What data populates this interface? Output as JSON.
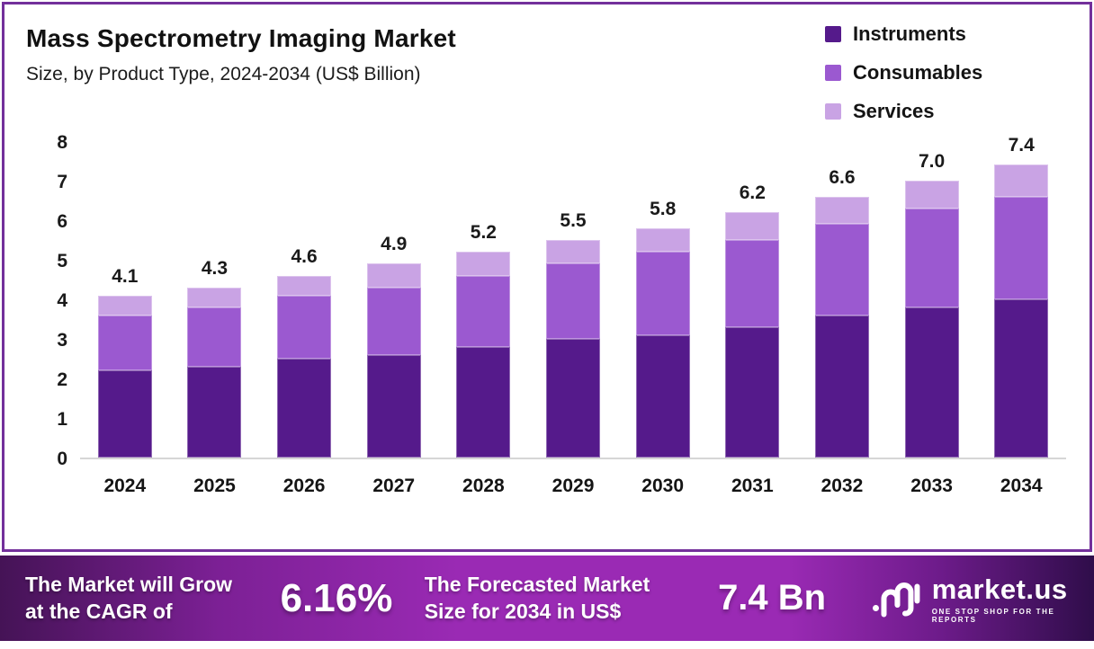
{
  "header": {
    "title": "Mass Spectrometry Imaging Market",
    "subtitle": "Size, by Product Type, 2024-2034 (US$ Billion)"
  },
  "legend": [
    {
      "label": "Instruments",
      "color": "#551a8b"
    },
    {
      "label": "Consumables",
      "color": "#9b59d0"
    },
    {
      "label": "Services",
      "color": "#c9a3e4"
    }
  ],
  "chart_data": {
    "type": "bar",
    "stacked": true,
    "title": "Mass Spectrometry Imaging Market",
    "subtitle": "Size, by Product Type, 2024-2034 (US$ Billion)",
    "xlabel": "",
    "ylabel": "US$ Billion",
    "ylim": [
      0,
      8
    ],
    "yticks": [
      0,
      1,
      2,
      3,
      4,
      5,
      6,
      7,
      8
    ],
    "grid": false,
    "legend_position": "top-right",
    "categories": [
      "2024",
      "2025",
      "2026",
      "2027",
      "2028",
      "2029",
      "2030",
      "2031",
      "2032",
      "2033",
      "2034"
    ],
    "series": [
      {
        "name": "Instruments",
        "color": "#551a8b",
        "values": [
          2.2,
          2.3,
          2.5,
          2.6,
          2.8,
          3.0,
          3.1,
          3.3,
          3.6,
          3.8,
          4.0
        ]
      },
      {
        "name": "Consumables",
        "color": "#9b59d0",
        "values": [
          1.4,
          1.5,
          1.6,
          1.7,
          1.8,
          1.9,
          2.1,
          2.2,
          2.3,
          2.5,
          2.6
        ]
      },
      {
        "name": "Services",
        "color": "#c9a3e4",
        "values": [
          0.5,
          0.5,
          0.5,
          0.6,
          0.6,
          0.6,
          0.6,
          0.7,
          0.7,
          0.7,
          0.8
        ]
      }
    ],
    "totals": [
      4.1,
      4.3,
      4.6,
      4.9,
      5.2,
      5.5,
      5.8,
      6.2,
      6.6,
      7.0,
      7.4
    ],
    "total_labels": [
      "4.1",
      "4.3",
      "4.6",
      "4.9",
      "5.2",
      "5.5",
      "5.8",
      "6.2",
      "6.6",
      "7.0",
      "7.4"
    ]
  },
  "banner": {
    "cagr_line1": "The Market will Grow",
    "cagr_line2": "at the CAGR of",
    "cagr_value": "6.16%",
    "forecast_line1": "The Forecasted Market",
    "forecast_line2": "Size for 2034 in US$",
    "forecast_value": "7.4 Bn",
    "logo_name": "market.us",
    "logo_tagline": "ONE STOP SHOP FOR THE REPORTS"
  },
  "colors": {
    "card_border": "#73309b",
    "banner_bright": "#9a2ab4",
    "banner_dark_left": "#451356",
    "banner_dark_right": "#2f0d4a",
    "axis_text": "#1a1a1a",
    "baseline": "#d6d6d6"
  }
}
